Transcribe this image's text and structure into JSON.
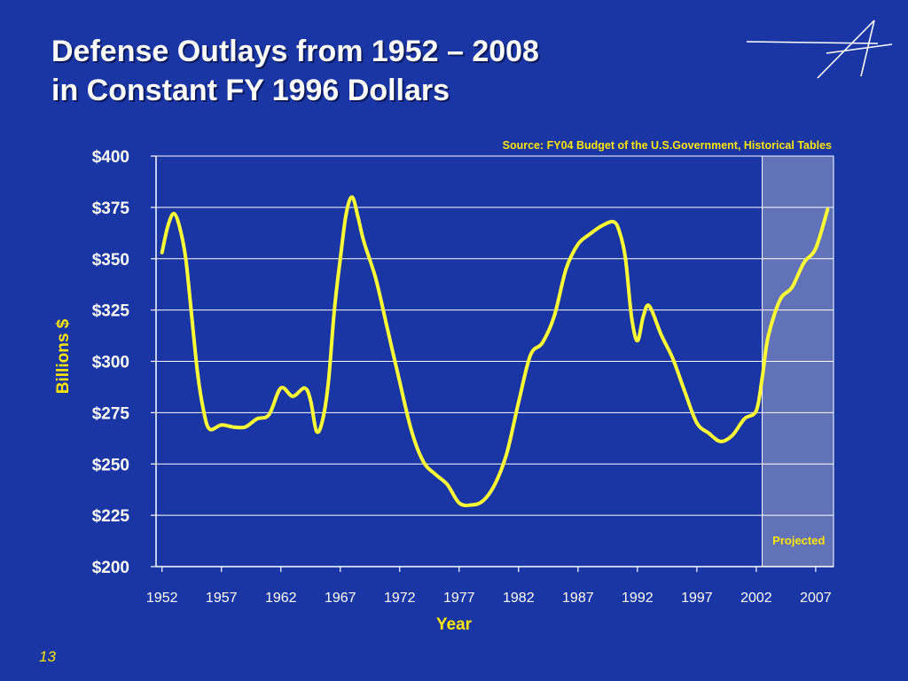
{
  "slide": {
    "title_line1": "Defense Outlays from 1952 – 2008",
    "title_line2": "in Constant FY 1996 Dollars",
    "page_number": "13",
    "logo_icon": "star-logo-icon"
  },
  "colors": {
    "background": "#1a36a4",
    "line": "#ffff33",
    "axis_text": "#ffffff",
    "highlight": "#ffe600",
    "projected_fill": "#6272b8"
  },
  "chart_data": {
    "type": "line",
    "source": "Source:  FY04 Budget of the U.S.Government, Historical Tables",
    "xlabel": "Year",
    "ylabel": "Billions $",
    "ylim": [
      200,
      400
    ],
    "xlim": [
      1951.5,
      2008.5
    ],
    "yticks": [
      200,
      225,
      250,
      275,
      300,
      325,
      350,
      375,
      400
    ],
    "ytick_labels": [
      "$200",
      "$225",
      "$250",
      "$275",
      "$300",
      "$325",
      "$350",
      "$375",
      "$400"
    ],
    "xticks": [
      1952,
      1957,
      1962,
      1967,
      1972,
      1977,
      1982,
      1987,
      1992,
      1997,
      2002,
      2007
    ],
    "xtick_labels": [
      "1952",
      "1957",
      "1962",
      "1967",
      "1972",
      "1977",
      "1982",
      "1987",
      "1992",
      "1997",
      "2002",
      "2007"
    ],
    "grid": true,
    "projected_region": {
      "start": 2003,
      "end": 2008,
      "label": "Projected"
    },
    "series": [
      {
        "x": [
          1952,
          1952.5,
          1953,
          1953.5,
          1954,
          1954.5,
          1955,
          1955.5,
          1956,
          1957,
          1958,
          1959,
          1960,
          1961,
          1962,
          1963,
          1964,
          1964.5,
          1965,
          1965.5,
          1966,
          1966.5,
          1967,
          1967.5,
          1968,
          1968.5,
          1969,
          1970,
          1971,
          1972,
          1973,
          1974,
          1975,
          1976,
          1977,
          1978,
          1979,
          1980,
          1981,
          1982,
          1983,
          1984,
          1985,
          1986,
          1987,
          1988,
          1989,
          1990,
          1990.5,
          1991,
          1991.5,
          1992,
          1992.5,
          1993,
          1994,
          1995,
          1996,
          1997,
          1998,
          1999,
          2000,
          2001,
          2002,
          2002.5,
          2003,
          2004,
          2005,
          2006,
          2007,
          2008
        ],
        "y": [
          353,
          366,
          372,
          365,
          350,
          322,
          294,
          276,
          267,
          269,
          268,
          268,
          272,
          274,
          287,
          283,
          287,
          281,
          266,
          271,
          290,
          325,
          350,
          372,
          380,
          370,
          358,
          340,
          315,
          290,
          266,
          251,
          245,
          240,
          231,
          230,
          232,
          240,
          255,
          280,
          303,
          309,
          322,
          345,
          357,
          362,
          366,
          368,
          363,
          350,
          322,
          310,
          322,
          327,
          313,
          301,
          285,
          270,
          265,
          261,
          264,
          272,
          276,
          292,
          312,
          330,
          336,
          348,
          355,
          374
        ]
      }
    ]
  }
}
